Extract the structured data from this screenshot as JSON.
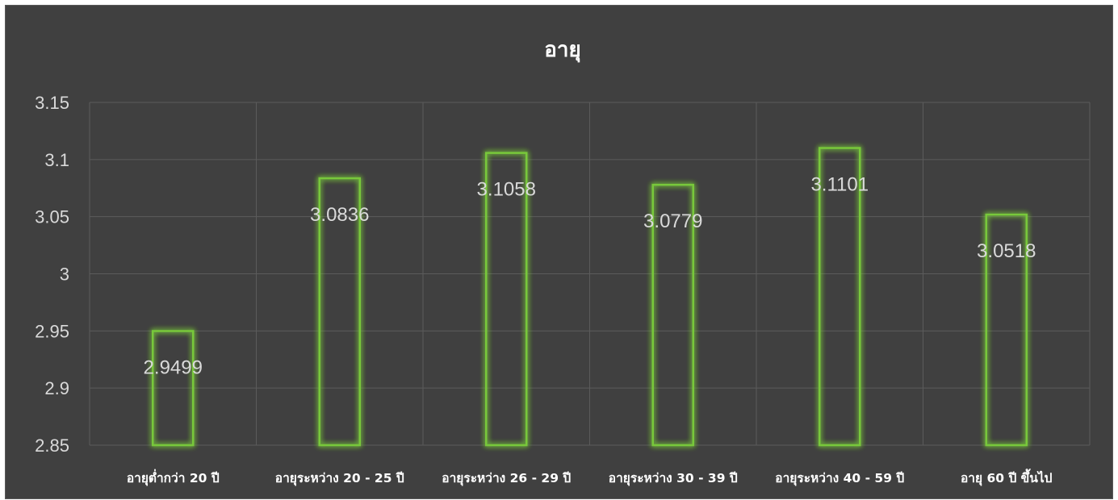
{
  "chart_data": {
    "type": "bar",
    "title": "อายุ",
    "categories": [
      "อายุต่ำกว่า 20 ปี",
      "อายุระหว่าง 20 - 25 ปี",
      "อายุระหว่าง 26 - 29 ปี",
      "อายุระหว่าง 30 - 39 ปี",
      "อายุระหว่าง 40 - 59 ปี",
      "อายุ 60 ปี ขึ้นไป"
    ],
    "values": [
      2.9499,
      3.0836,
      3.1058,
      3.0779,
      3.1101,
      3.0518
    ],
    "data_labels": [
      "2.9499",
      "3.0836",
      "3.1058",
      "3.0779",
      "3.1101",
      "3.0518"
    ],
    "y_ticks": [
      "2.85",
      "2.9",
      "2.95",
      "3",
      "3.05",
      "3.1",
      "3.15"
    ],
    "ylim": [
      2.85,
      3.15
    ],
    "grid": true,
    "legend": "none",
    "xlabel": "",
    "ylabel": "",
    "colors": {
      "background": "#404040",
      "bar_outline": "#78c83a",
      "bar_glow": "#9be05a",
      "text": "#d9d9d9",
      "title": "#ffffff"
    }
  }
}
